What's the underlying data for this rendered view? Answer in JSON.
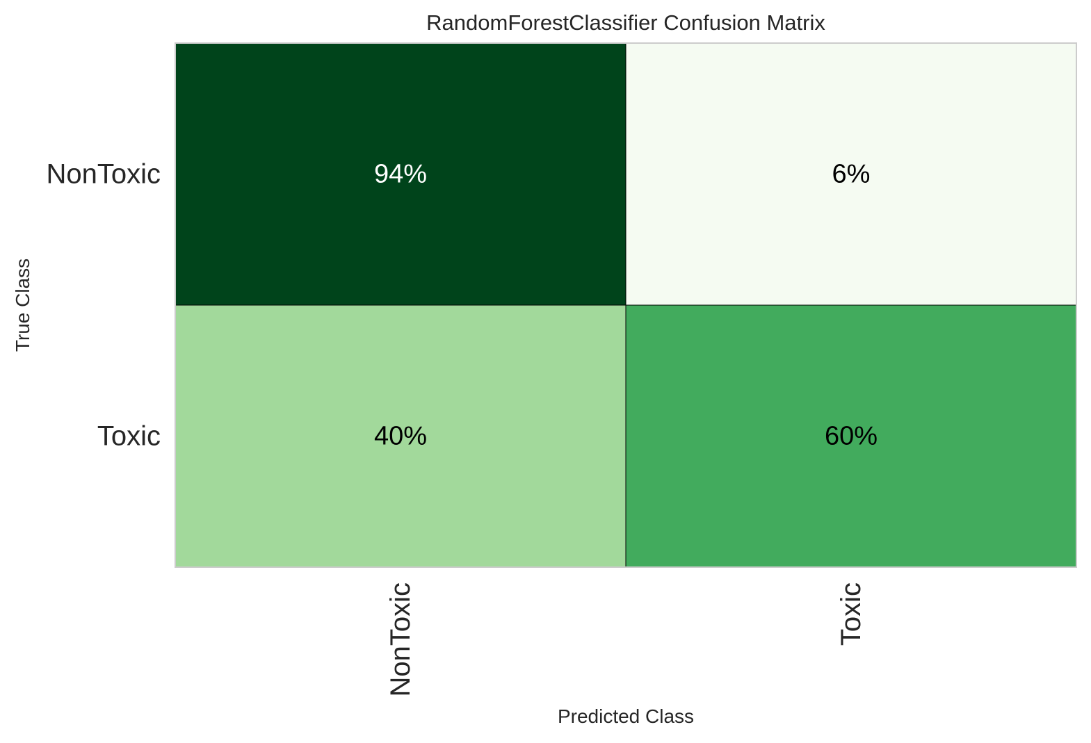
{
  "chart_data": {
    "type": "heatmap",
    "title": "RandomForestClassifier Confusion Matrix",
    "xlabel": "Predicted Class",
    "ylabel": "True Class",
    "x_categories": [
      "NonToxic",
      "Toxic"
    ],
    "y_categories": [
      "NonToxic",
      "Toxic"
    ],
    "values": [
      [
        94,
        6
      ],
      [
        40,
        60
      ]
    ],
    "cell_labels": [
      [
        "94%",
        "6%"
      ],
      [
        "40%",
        "60%"
      ]
    ],
    "value_unit": "%",
    "colormap": "Greens",
    "cell_colors": [
      [
        "#00441b",
        "#f5fbf2"
      ],
      [
        "#a2d99b",
        "#42ab5d"
      ]
    ],
    "label_colors": [
      [
        "#ffffff",
        "#000000"
      ],
      [
        "#000000",
        "#000000"
      ]
    ],
    "grid": false
  }
}
